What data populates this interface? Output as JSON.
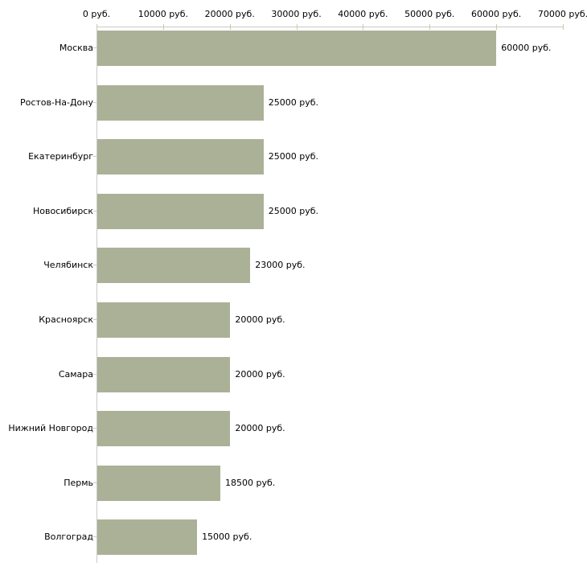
{
  "chart_data": {
    "type": "bar",
    "orientation": "horizontal",
    "title": "",
    "xlabel": "",
    "ylabel": "",
    "categories": [
      "Москва",
      "Ростов-На-Дону",
      "Екатеринбург",
      "Новосибирск",
      "Челябинск",
      "Красноярск",
      "Самара",
      "Нижний Новгород",
      "Пермь",
      "Волгоград"
    ],
    "values": [
      60000,
      25000,
      25000,
      25000,
      23000,
      20000,
      20000,
      20000,
      18500,
      15000
    ],
    "value_labels": [
      "60000 руб.",
      "25000 руб.",
      "25000 руб.",
      "25000 руб.",
      "23000 руб.",
      "20000 руб.",
      "20000 руб.",
      "20000 руб.",
      "18500 руб.",
      "15000 руб."
    ],
    "x_tick_labels": [
      "0 руб.",
      "10000 руб.",
      "20000 руб.",
      "30000 руб.",
      "40000 руб.",
      "50000 руб.",
      "60000 руб.",
      "70000 руб."
    ],
    "xlim": [
      0,
      70000
    ],
    "x_axis_position": "top",
    "grid": false,
    "legend": false,
    "unit": "руб.",
    "colors": {
      "bar_fill": "#abb197",
      "axis_line": "#c9c9c9",
      "tick_mark": "#cbcc9e",
      "text": "#000000",
      "background": "#ffffff"
    }
  }
}
